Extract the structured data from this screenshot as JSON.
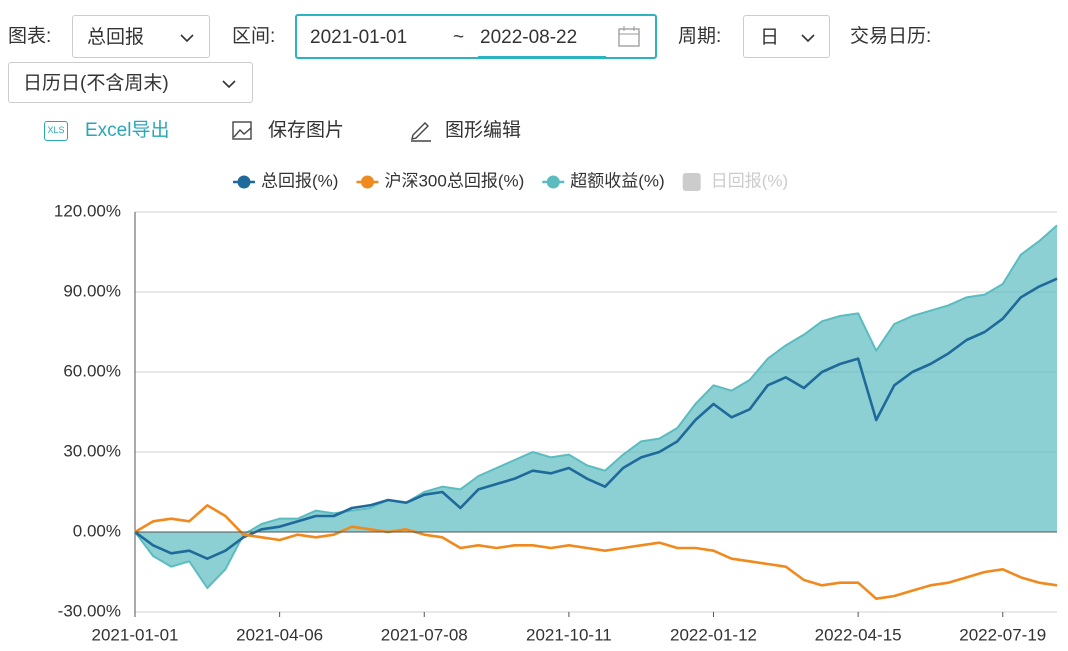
{
  "toolbar": {
    "chart_label": "图表:",
    "chart_select": "总回报",
    "range_label": "区间:",
    "start_date": "2021-01-01",
    "range_sep": "~",
    "end_date": "2022-08-22",
    "period_label": "周期:",
    "period_select": "日",
    "calendar_label": "交易日历:",
    "calendar_select": "日历日(不含周末)"
  },
  "actions": [
    {
      "icon_text": "XLS",
      "label": "Excel导出"
    },
    {
      "label": "保存图片"
    },
    {
      "label": "图形编辑"
    }
  ],
  "chart_data": {
    "type": "line",
    "grid": true,
    "legend": "top",
    "categories": [
      "2021-01-01",
      null,
      null,
      null,
      null,
      null,
      null,
      null,
      "2021-04-06",
      null,
      null,
      null,
      null,
      null,
      null,
      null,
      "2021-07-08",
      null,
      null,
      null,
      null,
      null,
      null,
      null,
      "2021-10-11",
      null,
      null,
      null,
      null,
      null,
      null,
      null,
      "2022-01-12",
      null,
      null,
      null,
      null,
      null,
      null,
      null,
      "2022-04-15",
      null,
      null,
      null,
      null,
      null,
      null,
      null,
      "2022-07-19",
      null,
      null,
      null
    ],
    "ylim": [
      -30,
      120
    ],
    "yticks": [
      {
        "value": -30,
        "label": "-30.00%"
      },
      {
        "value": 0,
        "label": "0.00%"
      },
      {
        "value": 30,
        "label": "30.00%"
      },
      {
        "value": 60,
        "label": "60.00%"
      },
      {
        "value": 90,
        "label": "90.00%"
      },
      {
        "value": 120,
        "label": "120.00%"
      }
    ],
    "series": [
      {
        "name": "总回报(%)",
        "color": "#1f6a9a",
        "values": [
          0,
          -5,
          -8,
          -7,
          -10,
          -7,
          -2,
          1,
          2,
          4,
          6,
          6,
          9,
          10,
          12,
          11,
          14,
          15,
          9,
          16,
          18,
          20,
          23,
          22,
          24,
          20,
          17,
          24,
          28,
          30,
          34,
          42,
          48,
          43,
          46,
          55,
          58,
          54,
          60,
          63,
          65,
          42,
          55,
          60,
          63,
          67,
          72,
          75,
          80,
          88,
          92,
          95
        ]
      },
      {
        "name": "沪深300总回报(%)",
        "color": "#f08a1e",
        "values": [
          0,
          4,
          5,
          4,
          10,
          6,
          -1,
          -2,
          -3,
          -1,
          -2,
          -1,
          2,
          1,
          0,
          1,
          -1,
          -2,
          -6,
          -5,
          -6,
          -5,
          -5,
          -6,
          -5,
          -6,
          -7,
          -6,
          -5,
          -4,
          -6,
          -6,
          -7,
          -10,
          -11,
          -12,
          -13,
          -18,
          -20,
          -19,
          -19,
          -25,
          -24,
          -22,
          -20,
          -19,
          -17,
          -15,
          -14,
          -17,
          -19,
          -20
        ]
      },
      {
        "name": "超额收益(%)",
        "color": "#5bbcc0",
        "area": true,
        "values": [
          0,
          -9,
          -13,
          -11,
          -21,
          -14,
          -1,
          3,
          5,
          5,
          8,
          7,
          8,
          9,
          12,
          11,
          15,
          17,
          16,
          21,
          24,
          27,
          30,
          28,
          29,
          25,
          23,
          29,
          34,
          35,
          39,
          48,
          55,
          53,
          57,
          65,
          70,
          74,
          79,
          81,
          82,
          68,
          78,
          81,
          83,
          85,
          88,
          89,
          93,
          104,
          109,
          115
        ]
      },
      {
        "name": "日回报(%)",
        "color": "#cccccc",
        "hidden": true
      }
    ]
  }
}
